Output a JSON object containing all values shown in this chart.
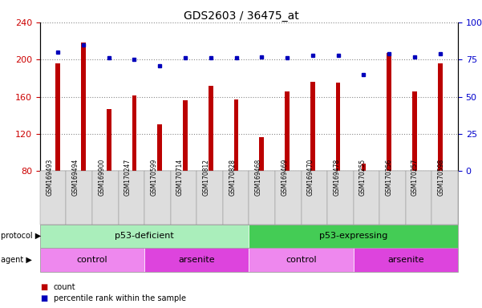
{
  "title": "GDS2603 / 36475_at",
  "samples": [
    "GSM169493",
    "GSM169494",
    "GSM169900",
    "GSM170247",
    "GSM170599",
    "GSM170714",
    "GSM170812",
    "GSM170828",
    "GSM169468",
    "GSM169469",
    "GSM169470",
    "GSM169478",
    "GSM170255",
    "GSM170256",
    "GSM170257",
    "GSM170598"
  ],
  "counts": [
    196,
    218,
    147,
    161,
    130,
    156,
    172,
    157,
    116,
    166,
    176,
    175,
    88,
    207,
    166,
    196
  ],
  "percentiles": [
    80,
    85,
    76,
    75,
    71,
    76,
    76,
    76,
    77,
    76,
    78,
    78,
    65,
    79,
    77,
    79
  ],
  "bar_color": "#bb0000",
  "dot_color": "#0000bb",
  "ylim_left": [
    80,
    240
  ],
  "ylim_right": [
    0,
    100
  ],
  "yticks_left": [
    80,
    120,
    160,
    200,
    240
  ],
  "yticks_right": [
    0,
    25,
    50,
    75,
    100
  ],
  "protocol_groups": [
    {
      "label": "p53-deficient",
      "start": 0,
      "end": 7,
      "color": "#aaeebb"
    },
    {
      "label": "p53-expressing",
      "start": 8,
      "end": 15,
      "color": "#44cc55"
    }
  ],
  "agent_groups": [
    {
      "label": "control",
      "start": 0,
      "end": 3,
      "color": "#ee88ee"
    },
    {
      "label": "arsenite",
      "start": 4,
      "end": 7,
      "color": "#dd44dd"
    },
    {
      "label": "control",
      "start": 8,
      "end": 11,
      "color": "#ee88ee"
    },
    {
      "label": "arsenite",
      "start": 12,
      "end": 15,
      "color": "#dd44dd"
    }
  ],
  "legend_items": [
    {
      "label": "count",
      "color": "#bb0000"
    },
    {
      "label": "percentile rank within the sample",
      "color": "#0000bb"
    }
  ],
  "left_label_color": "#cc0000",
  "right_label_color": "#0000cc",
  "grid_color": "#888888",
  "plot_bg": "#ffffff",
  "xtick_bg": "#dddddd",
  "band_border": "#888888"
}
